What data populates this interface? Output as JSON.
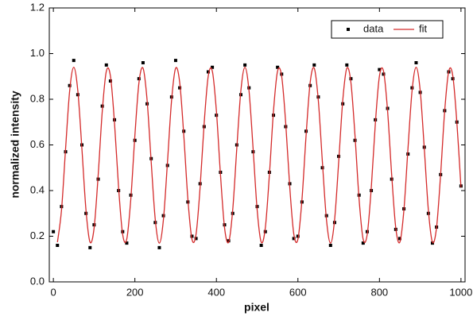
{
  "chart_data": {
    "type": "scatter",
    "x_label": "pixel",
    "y_label": "normalized intensity",
    "xlim": [
      -10,
      1010
    ],
    "xticks": [
      0,
      200,
      400,
      600,
      800,
      1000
    ],
    "ylim": [
      0,
      1.2
    ],
    "yticks": [
      {
        "value": 0,
        "label": "0.0"
      },
      0.2,
      0.4,
      0.6,
      0.8,
      {
        "value": 1,
        "label": "1.0"
      },
      1.2
    ],
    "legend": "upper right",
    "series": [
      {
        "name": "data",
        "type": "scatter",
        "color": "#000000",
        "x": [
          0,
          10,
          20,
          30,
          40,
          50,
          60,
          70,
          80,
          90,
          100,
          110,
          120,
          130,
          140,
          150,
          160,
          170,
          180,
          190,
          200,
          210,
          220,
          230,
          240,
          250,
          260,
          270,
          280,
          290,
          300,
          310,
          320,
          330,
          340,
          350,
          360,
          370,
          380,
          390,
          400,
          410,
          420,
          430,
          440,
          450,
          460,
          470,
          480,
          490,
          500,
          510,
          520,
          530,
          540,
          550,
          560,
          570,
          580,
          590,
          600,
          610,
          620,
          630,
          640,
          650,
          660,
          670,
          680,
          690,
          700,
          710,
          720,
          730,
          740,
          750,
          760,
          770,
          780,
          790,
          800,
          810,
          820,
          830,
          840,
          850,
          860,
          870,
          880,
          890,
          900,
          910,
          920,
          930,
          940,
          950,
          960,
          970,
          980,
          990,
          1000
        ],
        "values": [
          0.22,
          0.16,
          0.33,
          0.57,
          0.86,
          0.97,
          0.82,
          0.6,
          0.3,
          0.15,
          0.25,
          0.45,
          0.77,
          0.95,
          0.88,
          0.71,
          0.4,
          0.22,
          0.17,
          0.38,
          0.62,
          0.89,
          0.96,
          0.78,
          0.54,
          0.26,
          0.15,
          0.29,
          0.51,
          0.81,
          0.97,
          0.85,
          0.66,
          0.35,
          0.2,
          0.19,
          0.43,
          0.68,
          0.92,
          0.94,
          0.73,
          0.48,
          0.25,
          0.18,
          0.3,
          0.6,
          0.82,
          0.95,
          0.85,
          0.57,
          0.33,
          0.16,
          0.22,
          0.48,
          0.73,
          0.94,
          0.91,
          0.68,
          0.43,
          0.19,
          0.2,
          0.35,
          0.66,
          0.86,
          0.95,
          0.81,
          0.5,
          0.29,
          0.16,
          0.26,
          0.55,
          0.78,
          0.95,
          0.89,
          0.62,
          0.38,
          0.17,
          0.22,
          0.4,
          0.71,
          0.93,
          0.91,
          0.76,
          0.45,
          0.23,
          0.19,
          0.32,
          0.56,
          0.85,
          0.96,
          0.83,
          0.59,
          0.3,
          0.17,
          0.24,
          0.47,
          0.75,
          0.92,
          0.89,
          0.7,
          0.42
        ]
      },
      {
        "name": "fit",
        "type": "line",
        "color": "#d42a2a",
        "x": [
          10,
          20,
          30,
          40,
          50,
          60,
          70,
          80,
          90,
          100,
          110,
          120,
          130,
          140,
          150,
          160,
          170,
          180,
          190,
          200,
          210,
          220,
          230,
          240,
          250,
          260,
          270,
          280,
          290,
          300,
          310,
          320,
          330,
          340,
          350,
          360,
          370,
          380,
          390,
          400,
          410,
          420,
          430,
          440,
          450,
          460,
          470,
          480,
          490,
          500,
          510,
          520,
          530,
          540,
          550,
          560,
          570,
          580,
          590,
          600,
          610,
          620,
          630,
          640,
          650,
          660,
          670,
          680,
          690,
          700,
          710,
          720,
          730,
          740,
          750,
          760,
          770,
          780,
          790,
          800,
          810,
          820,
          830,
          840,
          850,
          860,
          870,
          880,
          890,
          900,
          910,
          920,
          930,
          940,
          950,
          960,
          970,
          980,
          990,
          1000
        ],
        "values": [
          0.174,
          0.315,
          0.584,
          0.837,
          0.94,
          0.837,
          0.584,
          0.315,
          0.174,
          0.237,
          0.469,
          0.748,
          0.923,
          0.902,
          0.696,
          0.414,
          0.208,
          0.187,
          0.363,
          0.641,
          0.873,
          0.936,
          0.795,
          0.526,
          0.273,
          0.17,
          0.273,
          0.526,
          0.795,
          0.936,
          0.873,
          0.641,
          0.363,
          0.187,
          0.208,
          0.414,
          0.696,
          0.902,
          0.923,
          0.748,
          0.469,
          0.237,
          0.174,
          0.315,
          0.584,
          0.837,
          0.94,
          0.837,
          0.584,
          0.315,
          0.174,
          0.237,
          0.469,
          0.748,
          0.923,
          0.902,
          0.696,
          0.414,
          0.208,
          0.187,
          0.363,
          0.641,
          0.873,
          0.936,
          0.795,
          0.526,
          0.273,
          0.17,
          0.273,
          0.526,
          0.795,
          0.936,
          0.873,
          0.641,
          0.363,
          0.187,
          0.208,
          0.414,
          0.696,
          0.902,
          0.923,
          0.748,
          0.469,
          0.237,
          0.174,
          0.315,
          0.584,
          0.837,
          0.94,
          0.837,
          0.584,
          0.315,
          0.174,
          0.237,
          0.469,
          0.748,
          0.923,
          0.902,
          0.696,
          0.414
        ]
      }
    ]
  }
}
